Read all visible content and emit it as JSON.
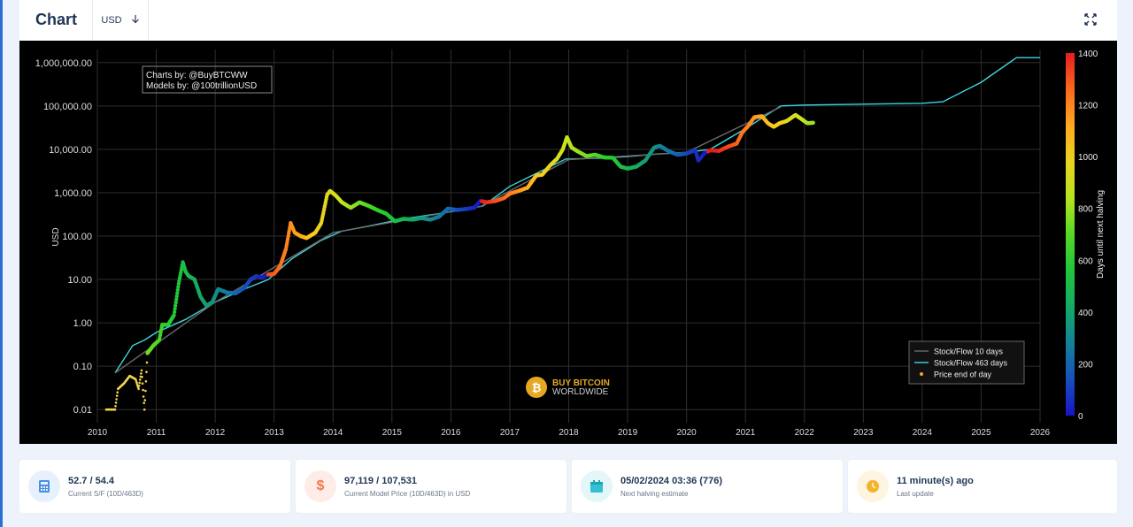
{
  "header": {
    "title": "Chart",
    "currency": "USD"
  },
  "chart_data": {
    "type": "scatter",
    "y_scale": "log",
    "ylabel": "USD",
    "y_ticks": [
      "1,000,000.00",
      "100,000.00",
      "10,000.00",
      "1,000.00",
      "100.00",
      "10.00",
      "1.00",
      "0.10",
      "0.01"
    ],
    "x_ticks": [
      "2010",
      "2011",
      "2012",
      "2013",
      "2014",
      "2015",
      "2016",
      "2017",
      "2018",
      "2019",
      "2020",
      "2021",
      "2022",
      "2023",
      "2024",
      "2025",
      "2026"
    ],
    "xlim": [
      2010,
      2026
    ],
    "ylim": [
      0.005,
      2000000
    ],
    "credits": [
      "Charts by: @BuyBTCWW",
      "Models by: @100trillionUSD"
    ],
    "watermark": [
      "BUY BITCOIN",
      "WORLDWIDE"
    ],
    "colorbar": {
      "label": "Days until next halving",
      "ticks": [
        "1400",
        "1200",
        "1000",
        "800",
        "600",
        "400",
        "200",
        "0"
      ],
      "range": [
        0,
        1400
      ]
    },
    "legend": {
      "placement": "bottom-right",
      "items": [
        "Stock/Flow 10 days",
        "Stock/Flow 463 days",
        "Price end of day"
      ]
    },
    "series": [
      {
        "name": "Price end of day",
        "color_by": "days_until_next_halving",
        "points": [
          [
            2010.15,
            0.01
          ],
          [
            2010.3,
            0.01
          ],
          [
            2010.35,
            0.03
          ],
          [
            2010.45,
            0.04
          ],
          [
            2010.55,
            0.06
          ],
          [
            2010.65,
            0.05
          ],
          [
            2010.7,
            0.03
          ],
          [
            2010.75,
            0.08
          ],
          [
            2010.8,
            0.01
          ],
          [
            2010.85,
            0.2
          ],
          [
            2010.95,
            0.3
          ],
          [
            2011.05,
            0.4
          ],
          [
            2011.1,
            0.9
          ],
          [
            2011.2,
            0.9
          ],
          [
            2011.3,
            1.5
          ],
          [
            2011.38,
            8
          ],
          [
            2011.45,
            25
          ],
          [
            2011.5,
            15
          ],
          [
            2011.55,
            12
          ],
          [
            2011.65,
            10
          ],
          [
            2011.75,
            4
          ],
          [
            2011.85,
            2.5
          ],
          [
            2011.95,
            3
          ],
          [
            2012.05,
            6
          ],
          [
            2012.2,
            5
          ],
          [
            2012.35,
            4.8
          ],
          [
            2012.5,
            6.5
          ],
          [
            2012.6,
            10
          ],
          [
            2012.7,
            12
          ],
          [
            2012.8,
            11
          ],
          [
            2012.9,
            13
          ],
          [
            2013.0,
            13.5
          ],
          [
            2013.1,
            20
          ],
          [
            2013.2,
            50
          ],
          [
            2013.28,
            200
          ],
          [
            2013.35,
            120
          ],
          [
            2013.45,
            100
          ],
          [
            2013.55,
            90
          ],
          [
            2013.7,
            120
          ],
          [
            2013.8,
            200
          ],
          [
            2013.9,
            900
          ],
          [
            2013.95,
            1100
          ],
          [
            2014.05,
            850
          ],
          [
            2014.15,
            600
          ],
          [
            2014.3,
            450
          ],
          [
            2014.45,
            600
          ],
          [
            2014.6,
            500
          ],
          [
            2014.75,
            400
          ],
          [
            2014.9,
            330
          ],
          [
            2015.05,
            220
          ],
          [
            2015.2,
            250
          ],
          [
            2015.35,
            240
          ],
          [
            2015.5,
            260
          ],
          [
            2015.65,
            240
          ],
          [
            2015.8,
            280
          ],
          [
            2015.95,
            430
          ],
          [
            2016.1,
            400
          ],
          [
            2016.25,
            420
          ],
          [
            2016.4,
            450
          ],
          [
            2016.5,
            650
          ],
          [
            2016.6,
            600
          ],
          [
            2016.75,
            640
          ],
          [
            2016.9,
            750
          ],
          [
            2017.0,
            950
          ],
          [
            2017.15,
            1100
          ],
          [
            2017.3,
            1300
          ],
          [
            2017.45,
            2500
          ],
          [
            2017.55,
            2600
          ],
          [
            2017.7,
            4500
          ],
          [
            2017.8,
            6000
          ],
          [
            2017.9,
            10000
          ],
          [
            2017.97,
            19000
          ],
          [
            2018.05,
            11000
          ],
          [
            2018.15,
            9000
          ],
          [
            2018.3,
            7000
          ],
          [
            2018.45,
            7500
          ],
          [
            2018.6,
            6500
          ],
          [
            2018.75,
            6400
          ],
          [
            2018.88,
            4000
          ],
          [
            2019.0,
            3600
          ],
          [
            2019.15,
            4000
          ],
          [
            2019.3,
            5500
          ],
          [
            2019.45,
            11000
          ],
          [
            2019.55,
            12000
          ],
          [
            2019.7,
            9000
          ],
          [
            2019.85,
            7500
          ],
          [
            2020.0,
            8000
          ],
          [
            2020.15,
            9500
          ],
          [
            2020.2,
            5500
          ],
          [
            2020.3,
            8000
          ],
          [
            2020.4,
            9500
          ],
          [
            2020.55,
            9200
          ],
          [
            2020.7,
            11500
          ],
          [
            2020.85,
            13500
          ],
          [
            2020.95,
            25000
          ],
          [
            2021.05,
            35000
          ],
          [
            2021.15,
            55000
          ],
          [
            2021.28,
            58000
          ],
          [
            2021.38,
            40000
          ],
          [
            2021.48,
            33000
          ],
          [
            2021.58,
            40000
          ],
          [
            2021.7,
            45000
          ],
          [
            2021.85,
            62000
          ],
          [
            2021.95,
            50000
          ],
          [
            2022.05,
            40000
          ],
          [
            2022.15,
            41000
          ]
        ]
      },
      {
        "name": "Stock/Flow 463 days",
        "color": "#3dd6e0",
        "points": [
          [
            2010.3,
            0.07
          ],
          [
            2010.6,
            0.3
          ],
          [
            2010.8,
            0.4
          ],
          [
            2011.0,
            0.6
          ],
          [
            2011.5,
            1.2
          ],
          [
            2012.0,
            3
          ],
          [
            2012.5,
            6
          ],
          [
            2012.9,
            10
          ],
          [
            2013.3,
            30
          ],
          [
            2013.8,
            80
          ],
          [
            2014.15,
            130
          ],
          [
            2014.6,
            170
          ],
          [
            2015.2,
            250
          ],
          [
            2015.8,
            330
          ],
          [
            2016.3,
            420
          ],
          [
            2016.55,
            500
          ],
          [
            2017.0,
            1400
          ],
          [
            2017.5,
            3000
          ],
          [
            2017.95,
            6000
          ],
          [
            2018.5,
            6200
          ],
          [
            2019.0,
            6800
          ],
          [
            2019.5,
            7800
          ],
          [
            2020.0,
            8500
          ],
          [
            2020.4,
            10000
          ],
          [
            2021.0,
            30000
          ],
          [
            2021.6,
            100000
          ],
          [
            2022.0,
            105000
          ],
          [
            2023.0,
            110000
          ],
          [
            2024.0,
            115000
          ],
          [
            2024.35,
            125000
          ],
          [
            2025.0,
            350000
          ],
          [
            2025.6,
            1300000
          ],
          [
            2026.0,
            1300000
          ]
        ]
      },
      {
        "name": "Stock/Flow 10 days",
        "color": "#6a6a6a",
        "points": [
          [
            2010.3,
            0.07
          ],
          [
            2012.0,
            3
          ],
          [
            2014.0,
            120
          ],
          [
            2016.5,
            480
          ],
          [
            2018.0,
            5800
          ],
          [
            2020.0,
            8500
          ],
          [
            2021.6,
            95000
          ]
        ]
      }
    ]
  },
  "stats": [
    {
      "value": "52.7 / 54.4",
      "label": "Current S/F (10D/463D)",
      "icon": "calculator-icon",
      "icon_bg": "#e7f0fd",
      "icon_color": "#4a90e2"
    },
    {
      "value": "97,119 / 107,531",
      "label": "Current Model Price (10D/463D) in USD",
      "icon": "dollar-icon",
      "icon_bg": "#fdece7",
      "icon_color": "#ee7a4f"
    },
    {
      "value": "05/02/2024 03:36 (776)",
      "label": "Next halving estimate",
      "icon": "calendar-icon",
      "icon_bg": "#e3f6f8",
      "icon_color": "#33c1d1"
    },
    {
      "value": "11 minute(s) ago",
      "label": "Last update",
      "icon": "clock-icon",
      "icon_bg": "#fdf5df",
      "icon_color": "#f3b42c"
    }
  ]
}
